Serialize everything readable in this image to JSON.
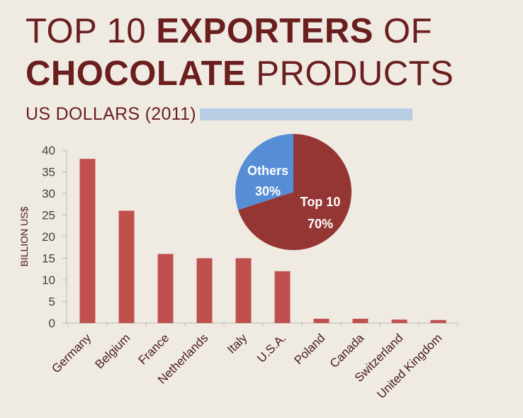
{
  "header": {
    "title_line1_prefix": "TOP 10 ",
    "title_line1_bold": "EXPORTERS",
    "title_line1_suffix": " OF",
    "title_line2_bold": "CHOCOLATE",
    "title_line2_suffix": " PRODUCTS",
    "subtitle": "US DOLLARS (2011)"
  },
  "colors": {
    "background": "#efebe3",
    "title": "#6b1e1e",
    "bar": "#c0504d",
    "pie_top10": "#943634",
    "pie_others": "#558ed5",
    "subtitle_bar": "#b8cce4"
  },
  "chart_data": [
    {
      "type": "bar",
      "categories": [
        "Germany",
        "Belgium",
        "France",
        "Netherlands",
        "Italy",
        "U.S.A.",
        "Poland",
        "Canada",
        "Switzerland",
        "United Kingdom"
      ],
      "values": [
        38,
        26,
        16,
        15,
        15,
        12,
        1,
        1,
        0.8,
        0.7
      ],
      "ylabel": "BILLION US$",
      "ylim": [
        0,
        40
      ],
      "yticks": [
        0,
        5,
        10,
        15,
        20,
        25,
        30,
        35,
        40
      ],
      "grid": false
    },
    {
      "type": "pie",
      "slices": [
        {
          "label": "Top 10",
          "value": 70,
          "value_label": "70%",
          "color": "#943634"
        },
        {
          "label": "Others",
          "value": 30,
          "value_label": "30%",
          "color": "#558ed5"
        }
      ]
    }
  ]
}
